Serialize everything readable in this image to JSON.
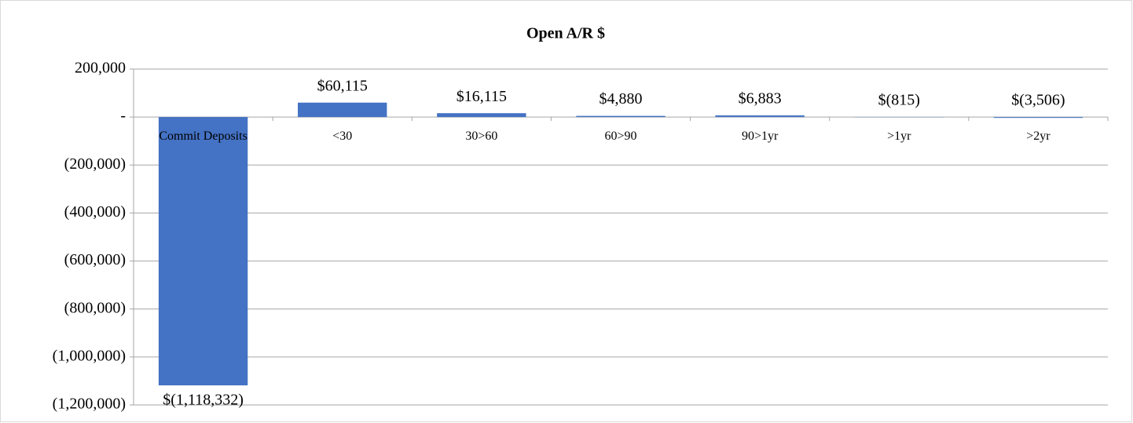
{
  "chart_data": {
    "type": "bar",
    "title": "Open A/R $",
    "categories": [
      "Commit Deposits",
      "<30",
      "30>60",
      "60>90",
      "90>1yr",
      ">1yr",
      ">2yr"
    ],
    "values": [
      -1118332,
      60115,
      16115,
      4880,
      6883,
      -815,
      -3506
    ],
    "value_labels": [
      "$(1,118,332)",
      "$60,115",
      "$16,115",
      "$4,880",
      "$6,883",
      "$(815)",
      "$(3,506)"
    ],
    "color": "#4472c4",
    "ylim": [
      -1200000,
      200000
    ],
    "yticks": [
      {
        "value": 200000,
        "label": "200,000"
      },
      {
        "value": 0,
        "label": "-"
      },
      {
        "value": -200000,
        "label": "(200,000)"
      },
      {
        "value": -400000,
        "label": "(400,000)"
      },
      {
        "value": -600000,
        "label": "(600,000)"
      },
      {
        "value": -800000,
        "label": "(800,000)"
      },
      {
        "value": -1000000,
        "label": "(1,000,000)"
      },
      {
        "value": -1200000,
        "label": "(1,200,000)"
      }
    ],
    "grid": true
  }
}
